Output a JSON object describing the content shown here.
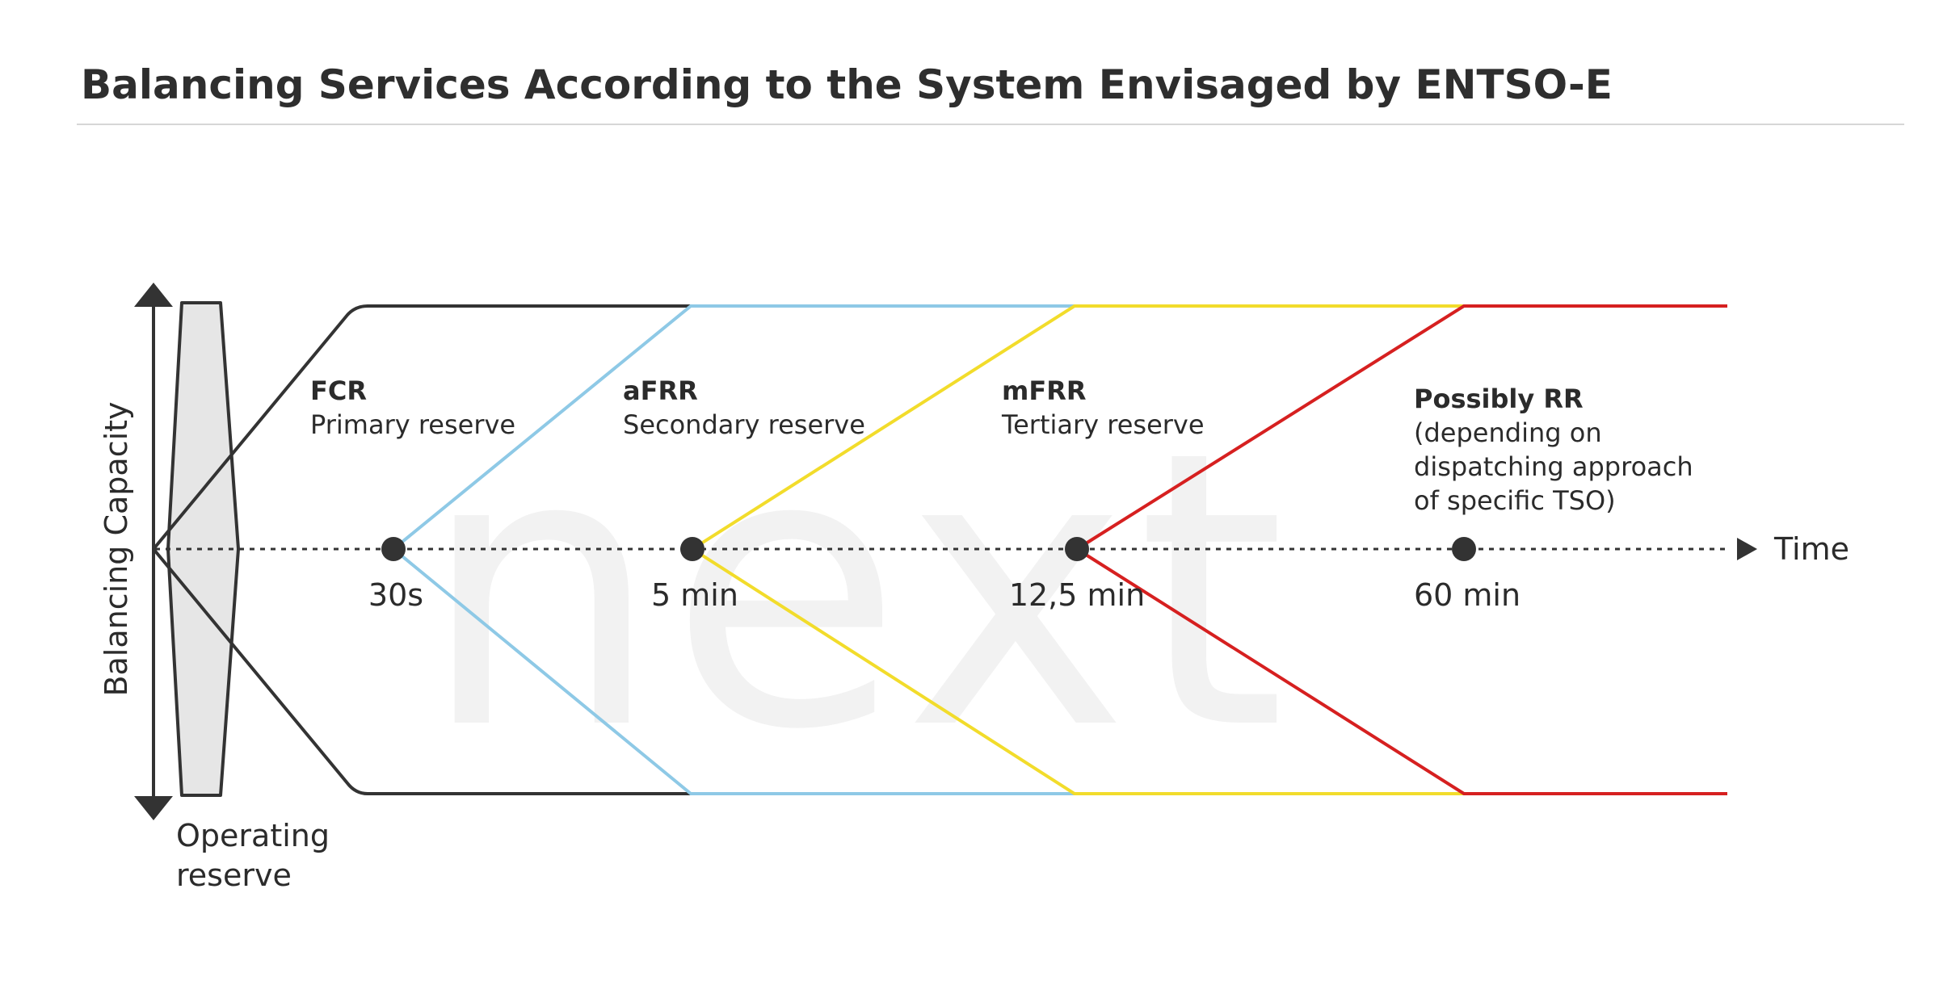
{
  "title": "Balancing Services According to the System Envisaged by ENTSO-E",
  "watermark": "next",
  "y_axis_label": "Balancing Capacity",
  "x_axis_label": "Time",
  "operating_reserve": {
    "line1": "Operating",
    "line2": "reserve"
  },
  "time_markers": [
    "30s",
    "5 min",
    "12,5 min",
    "60 min"
  ],
  "services": [
    {
      "name": "FCR",
      "description": "Primary reserve",
      "color": "#333333"
    },
    {
      "name": "aFRR",
      "description": "Secondary reserve",
      "color": "#8ec9e6"
    },
    {
      "name": "mFRR",
      "description": "Tertiary reserve",
      "color": "#f2dc2b"
    },
    {
      "name": "Possibly RR",
      "description_lines": [
        "(depending on",
        "dispatching approach",
        "of specific TSO)"
      ],
      "color": "#d62020"
    }
  ],
  "colors": {
    "operating_reserve_fill": "#e6e6e6",
    "watermark": "#f2f2f2",
    "text": "#2b2b2b",
    "rule": "#d6d6d6"
  }
}
